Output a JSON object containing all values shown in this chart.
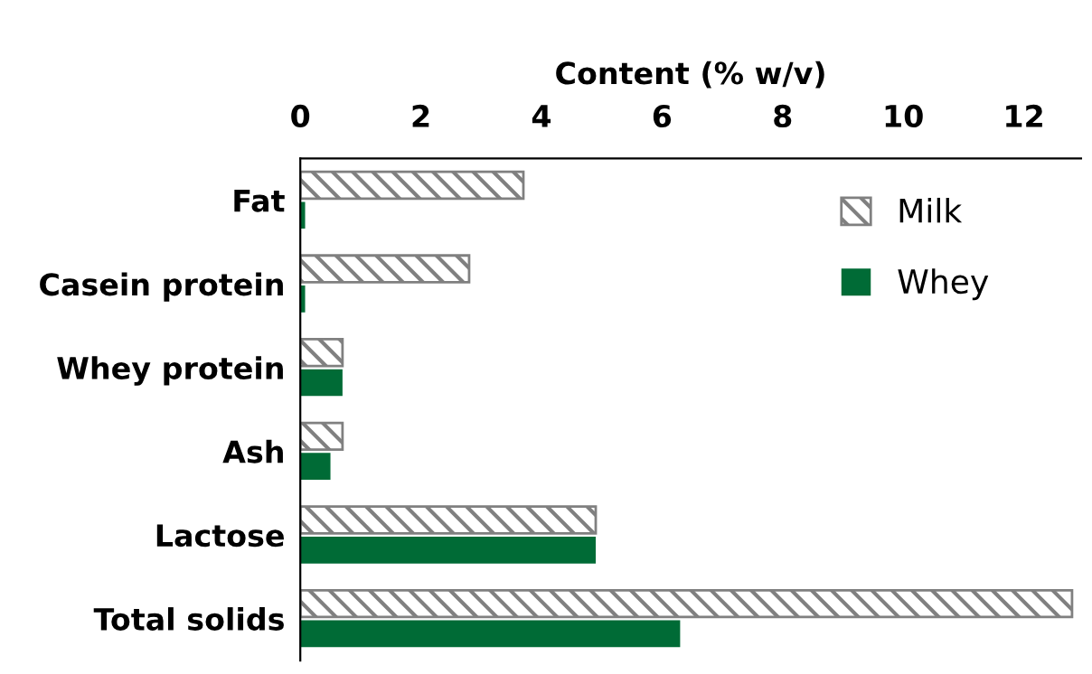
{
  "chart_data": {
    "type": "bar",
    "orientation": "horizontal",
    "xlabel": "Content (% w/v)",
    "categories": [
      "Fat",
      "Casein protein",
      "Whey protein",
      "Ash",
      "Lactose",
      "Total solids"
    ],
    "series": [
      {
        "name": "Milk",
        "color": "#808080",
        "values": [
          3.7,
          2.8,
          0.7,
          0.7,
          4.9,
          12.8
        ]
      },
      {
        "name": "Whey",
        "color": "#006b36",
        "values": [
          0.08,
          0.08,
          0.7,
          0.5,
          4.9,
          6.3
        ]
      }
    ],
    "xlim": [
      0,
      12.95
    ],
    "xticks": [
      0,
      2,
      4,
      6,
      8,
      10,
      12
    ],
    "grid": false,
    "legend": "top right"
  }
}
